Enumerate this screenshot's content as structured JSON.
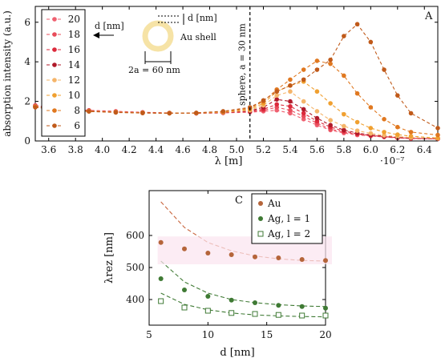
{
  "figure_top": {
    "panel_label": "A",
    "chart_data": {
      "type": "line",
      "xlabel": "λ [m]",
      "ylabel": "absorption intensity (a.u.)",
      "x_scale_label": "·10⁻⁷",
      "xlim": [
        3.5,
        6.5
      ],
      "ylim": [
        0,
        6.8
      ],
      "x_ticks": [
        "3.6",
        "3.8",
        "4.0",
        "4.2",
        "4.4",
        "4.6",
        "4.8",
        "5.0",
        "5.2",
        "5.4",
        "5.6",
        "5.8",
        "6.0",
        "6.2",
        "6.4"
      ],
      "y_ticks": [
        "0",
        "2",
        "4",
        "6"
      ],
      "legend_position": "top-left",
      "x": [
        3.5,
        3.7,
        3.9,
        4.1,
        4.3,
        4.5,
        4.7,
        4.9,
        5.1,
        5.2,
        5.3,
        5.4,
        5.5,
        5.6,
        5.7,
        5.8,
        5.9,
        6.0,
        6.1,
        6.2,
        6.3,
        6.5
      ],
      "series": [
        {
          "name": "20",
          "color": "#ef6070",
          "values": [
            1.8,
            1.6,
            1.55,
            1.5,
            1.45,
            1.42,
            1.4,
            1.42,
            1.45,
            1.5,
            1.55,
            1.4,
            1.1,
            0.8,
            0.55,
            0.4,
            0.3,
            0.25,
            0.2,
            0.15,
            0.12,
            0.1
          ]
        },
        {
          "name": "18",
          "color": "#e84c5a",
          "values": [
            1.78,
            1.58,
            1.53,
            1.48,
            1.44,
            1.41,
            1.4,
            1.42,
            1.48,
            1.55,
            1.7,
            1.55,
            1.25,
            0.9,
            0.6,
            0.45,
            0.33,
            0.27,
            0.2,
            0.16,
            0.13,
            0.1
          ]
        },
        {
          "name": "16",
          "color": "#dc2a3c",
          "values": [
            1.76,
            1.57,
            1.52,
            1.47,
            1.43,
            1.41,
            1.4,
            1.43,
            1.5,
            1.6,
            1.85,
            1.75,
            1.4,
            1.0,
            0.7,
            0.5,
            0.36,
            0.28,
            0.22,
            0.17,
            0.14,
            0.11
          ]
        },
        {
          "name": "14",
          "color": "#b01a2a",
          "values": [
            1.75,
            1.56,
            1.52,
            1.46,
            1.43,
            1.41,
            1.4,
            1.44,
            1.52,
            1.7,
            2.1,
            2.0,
            1.6,
            1.15,
            0.8,
            0.55,
            0.4,
            0.3,
            0.24,
            0.18,
            0.15,
            0.12
          ]
        },
        {
          "name": "12",
          "color": "#f5b56a",
          "values": [
            1.74,
            1.55,
            1.51,
            1.46,
            1.42,
            1.41,
            1.41,
            1.45,
            1.55,
            1.8,
            2.3,
            2.5,
            2.0,
            1.5,
            1.05,
            0.75,
            0.52,
            0.38,
            0.28,
            0.22,
            0.17,
            0.13
          ]
        },
        {
          "name": "10",
          "color": "#f0a030",
          "values": [
            1.73,
            1.55,
            1.5,
            1.45,
            1.42,
            1.4,
            1.41,
            1.46,
            1.6,
            1.9,
            2.5,
            2.8,
            3.0,
            2.5,
            1.9,
            1.35,
            0.95,
            0.65,
            0.45,
            0.32,
            0.24,
            0.15
          ]
        },
        {
          "name": "8",
          "color": "#e07820",
          "values": [
            1.72,
            1.54,
            1.5,
            1.45,
            1.42,
            1.4,
            1.42,
            1.48,
            1.65,
            2.0,
            2.6,
            3.1,
            3.6,
            4.05,
            3.9,
            3.3,
            2.4,
            1.7,
            1.1,
            0.7,
            0.45,
            0.3
          ]
        },
        {
          "name": "6",
          "color": "#c05a1a",
          "values": [
            1.7,
            1.53,
            1.49,
            1.44,
            1.41,
            1.4,
            1.42,
            1.5,
            1.7,
            2.05,
            2.5,
            2.8,
            3.1,
            3.6,
            4.1,
            5.3,
            5.9,
            5.0,
            3.6,
            2.3,
            1.4,
            0.65
          ]
        }
      ],
      "legend_header": "",
      "legend_entries": [
        "20",
        "18",
        "16",
        "14",
        "12",
        "10",
        "8",
        "6"
      ]
    },
    "annotations": {
      "vline_label": "sphere, a = 30 nm",
      "vline_x": 5.1,
      "inset_d_left": "d [nm]",
      "inset_d_right": "d [nm]",
      "inset_shell": "Au shell",
      "inset_diameter": "2a = 60 nm"
    }
  },
  "figure_bottom": {
    "panel_label": "C",
    "chart_data": {
      "type": "scatter",
      "xlabel": "d [nm]",
      "ylabel": "λrez [nm]",
      "xlim": [
        5,
        20
      ],
      "ylim": [
        320,
        740
      ],
      "x_ticks": [
        "5",
        "10",
        "15",
        "20"
      ],
      "y_ticks": [
        "400",
        "500",
        "600"
      ],
      "legend_position": "top-right",
      "x": [
        6,
        8,
        10,
        12,
        14,
        16,
        18,
        20
      ],
      "series": [
        {
          "name": "Au",
          "color": "#b5653a",
          "marker": "filled-circle",
          "values": [
            578,
            558,
            545,
            540,
            533,
            530,
            525,
            522
          ]
        },
        {
          "name": "Ag, l = 1",
          "color": "#3f7a34",
          "marker": "filled-circle",
          "values": [
            465,
            430,
            410,
            398,
            390,
            382,
            378,
            373
          ]
        },
        {
          "name": "Ag, l = 2",
          "color": "#3f7a34",
          "marker": "open-square",
          "values": [
            395,
            375,
            365,
            358,
            355,
            352,
            350,
            350
          ]
        }
      ],
      "fit_curves": [
        {
          "color": "#c8643c",
          "x": [
            6,
            8,
            10,
            12,
            14,
            16,
            18,
            20
          ],
          "values": [
            705,
            625,
            578,
            552,
            536,
            527,
            522,
            520
          ]
        },
        {
          "color": "#3f7a34",
          "x": [
            6,
            8,
            10,
            12,
            14,
            16,
            18,
            20
          ],
          "values": [
            520,
            455,
            420,
            400,
            390,
            384,
            380,
            378
          ]
        },
        {
          "color": "#3f7a34",
          "x": [
            6,
            8,
            10,
            12,
            14,
            16,
            18,
            20
          ],
          "values": [
            420,
            385,
            368,
            358,
            352,
            349,
            347,
            346
          ]
        }
      ]
    }
  }
}
